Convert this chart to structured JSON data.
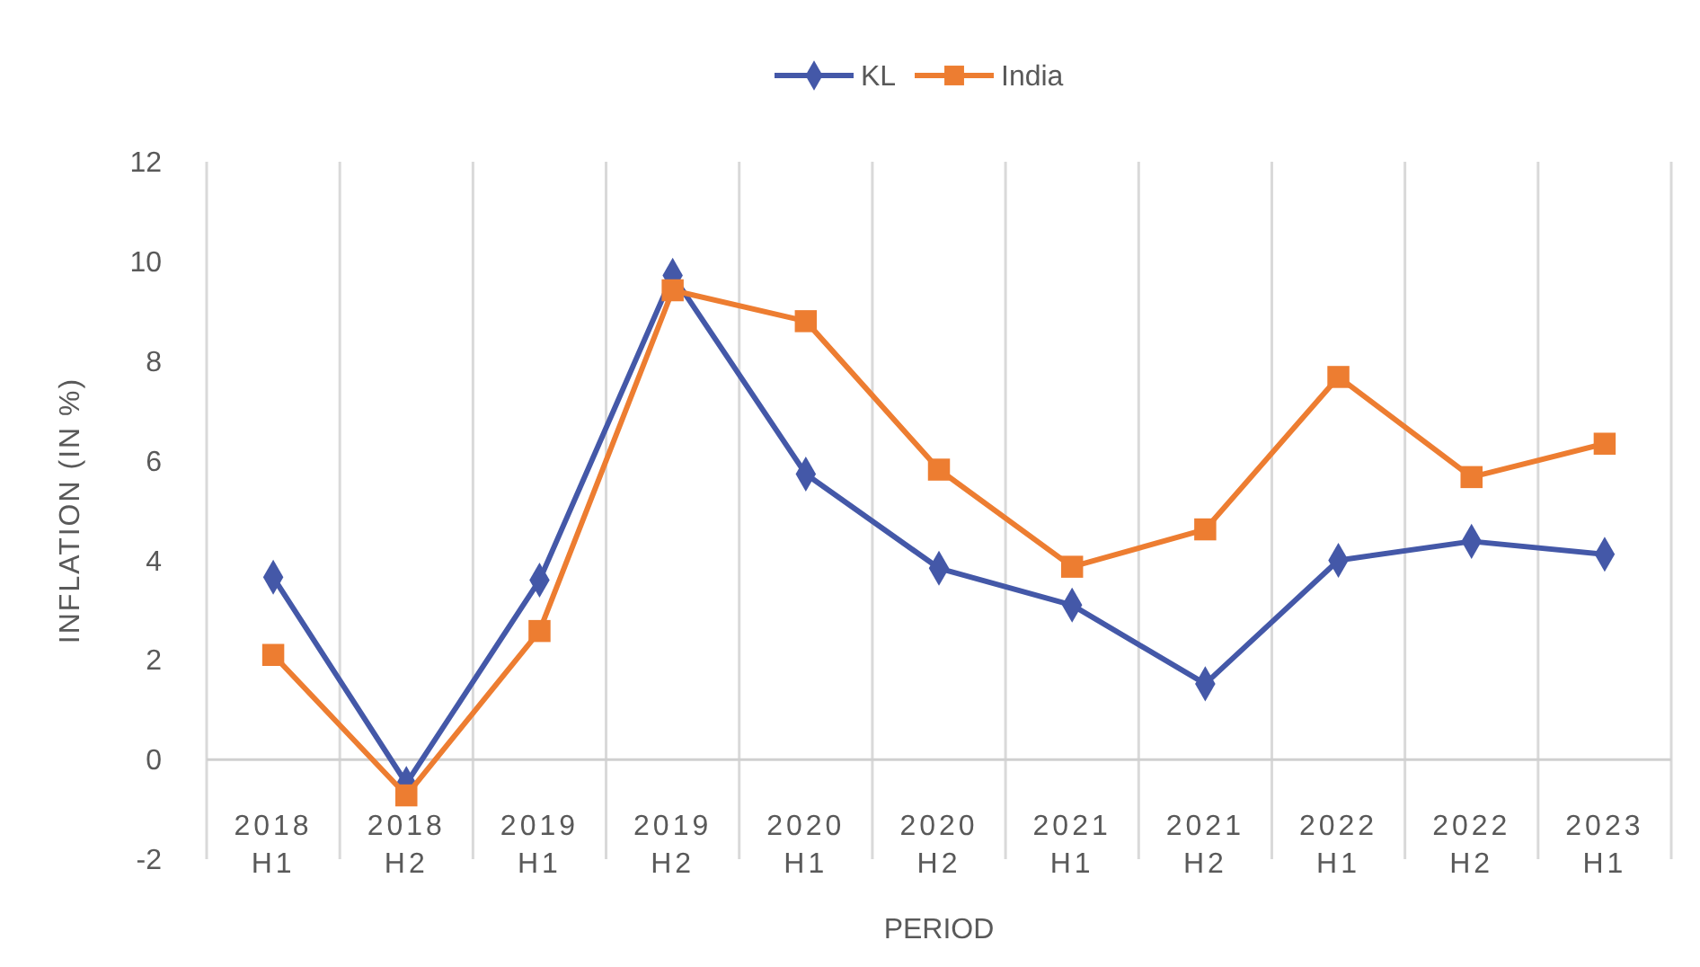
{
  "chart_data": {
    "type": "line",
    "xlabel": "PERIOD",
    "ylabel": "INFLATION (IN %)",
    "categories": [
      "2018 H1",
      "2018 H2",
      "2019 H1",
      "2019 H2",
      "2020 H1",
      "2020 H2",
      "2021 H1",
      "2021 H2",
      "2022 H1",
      "2022 H2",
      "2023 H1"
    ],
    "series": [
      {
        "name": "KL",
        "color": "#4458a8",
        "marker": "diamond",
        "values": [
          3.66,
          -0.48,
          3.6,
          9.72,
          5.73,
          3.84,
          3.1,
          1.52,
          4.0,
          4.38,
          4.12
        ]
      },
      {
        "name": "India",
        "color": "#ed7d31",
        "marker": "square",
        "values": [
          2.1,
          -0.72,
          2.58,
          9.42,
          8.8,
          5.82,
          3.87,
          4.62,
          7.68,
          5.67,
          6.34
        ]
      }
    ],
    "ylim": [
      -2,
      12
    ],
    "yticks": [
      -2,
      0,
      2,
      4,
      6,
      8,
      10,
      12
    ],
    "grid": "x",
    "legend": "top"
  }
}
